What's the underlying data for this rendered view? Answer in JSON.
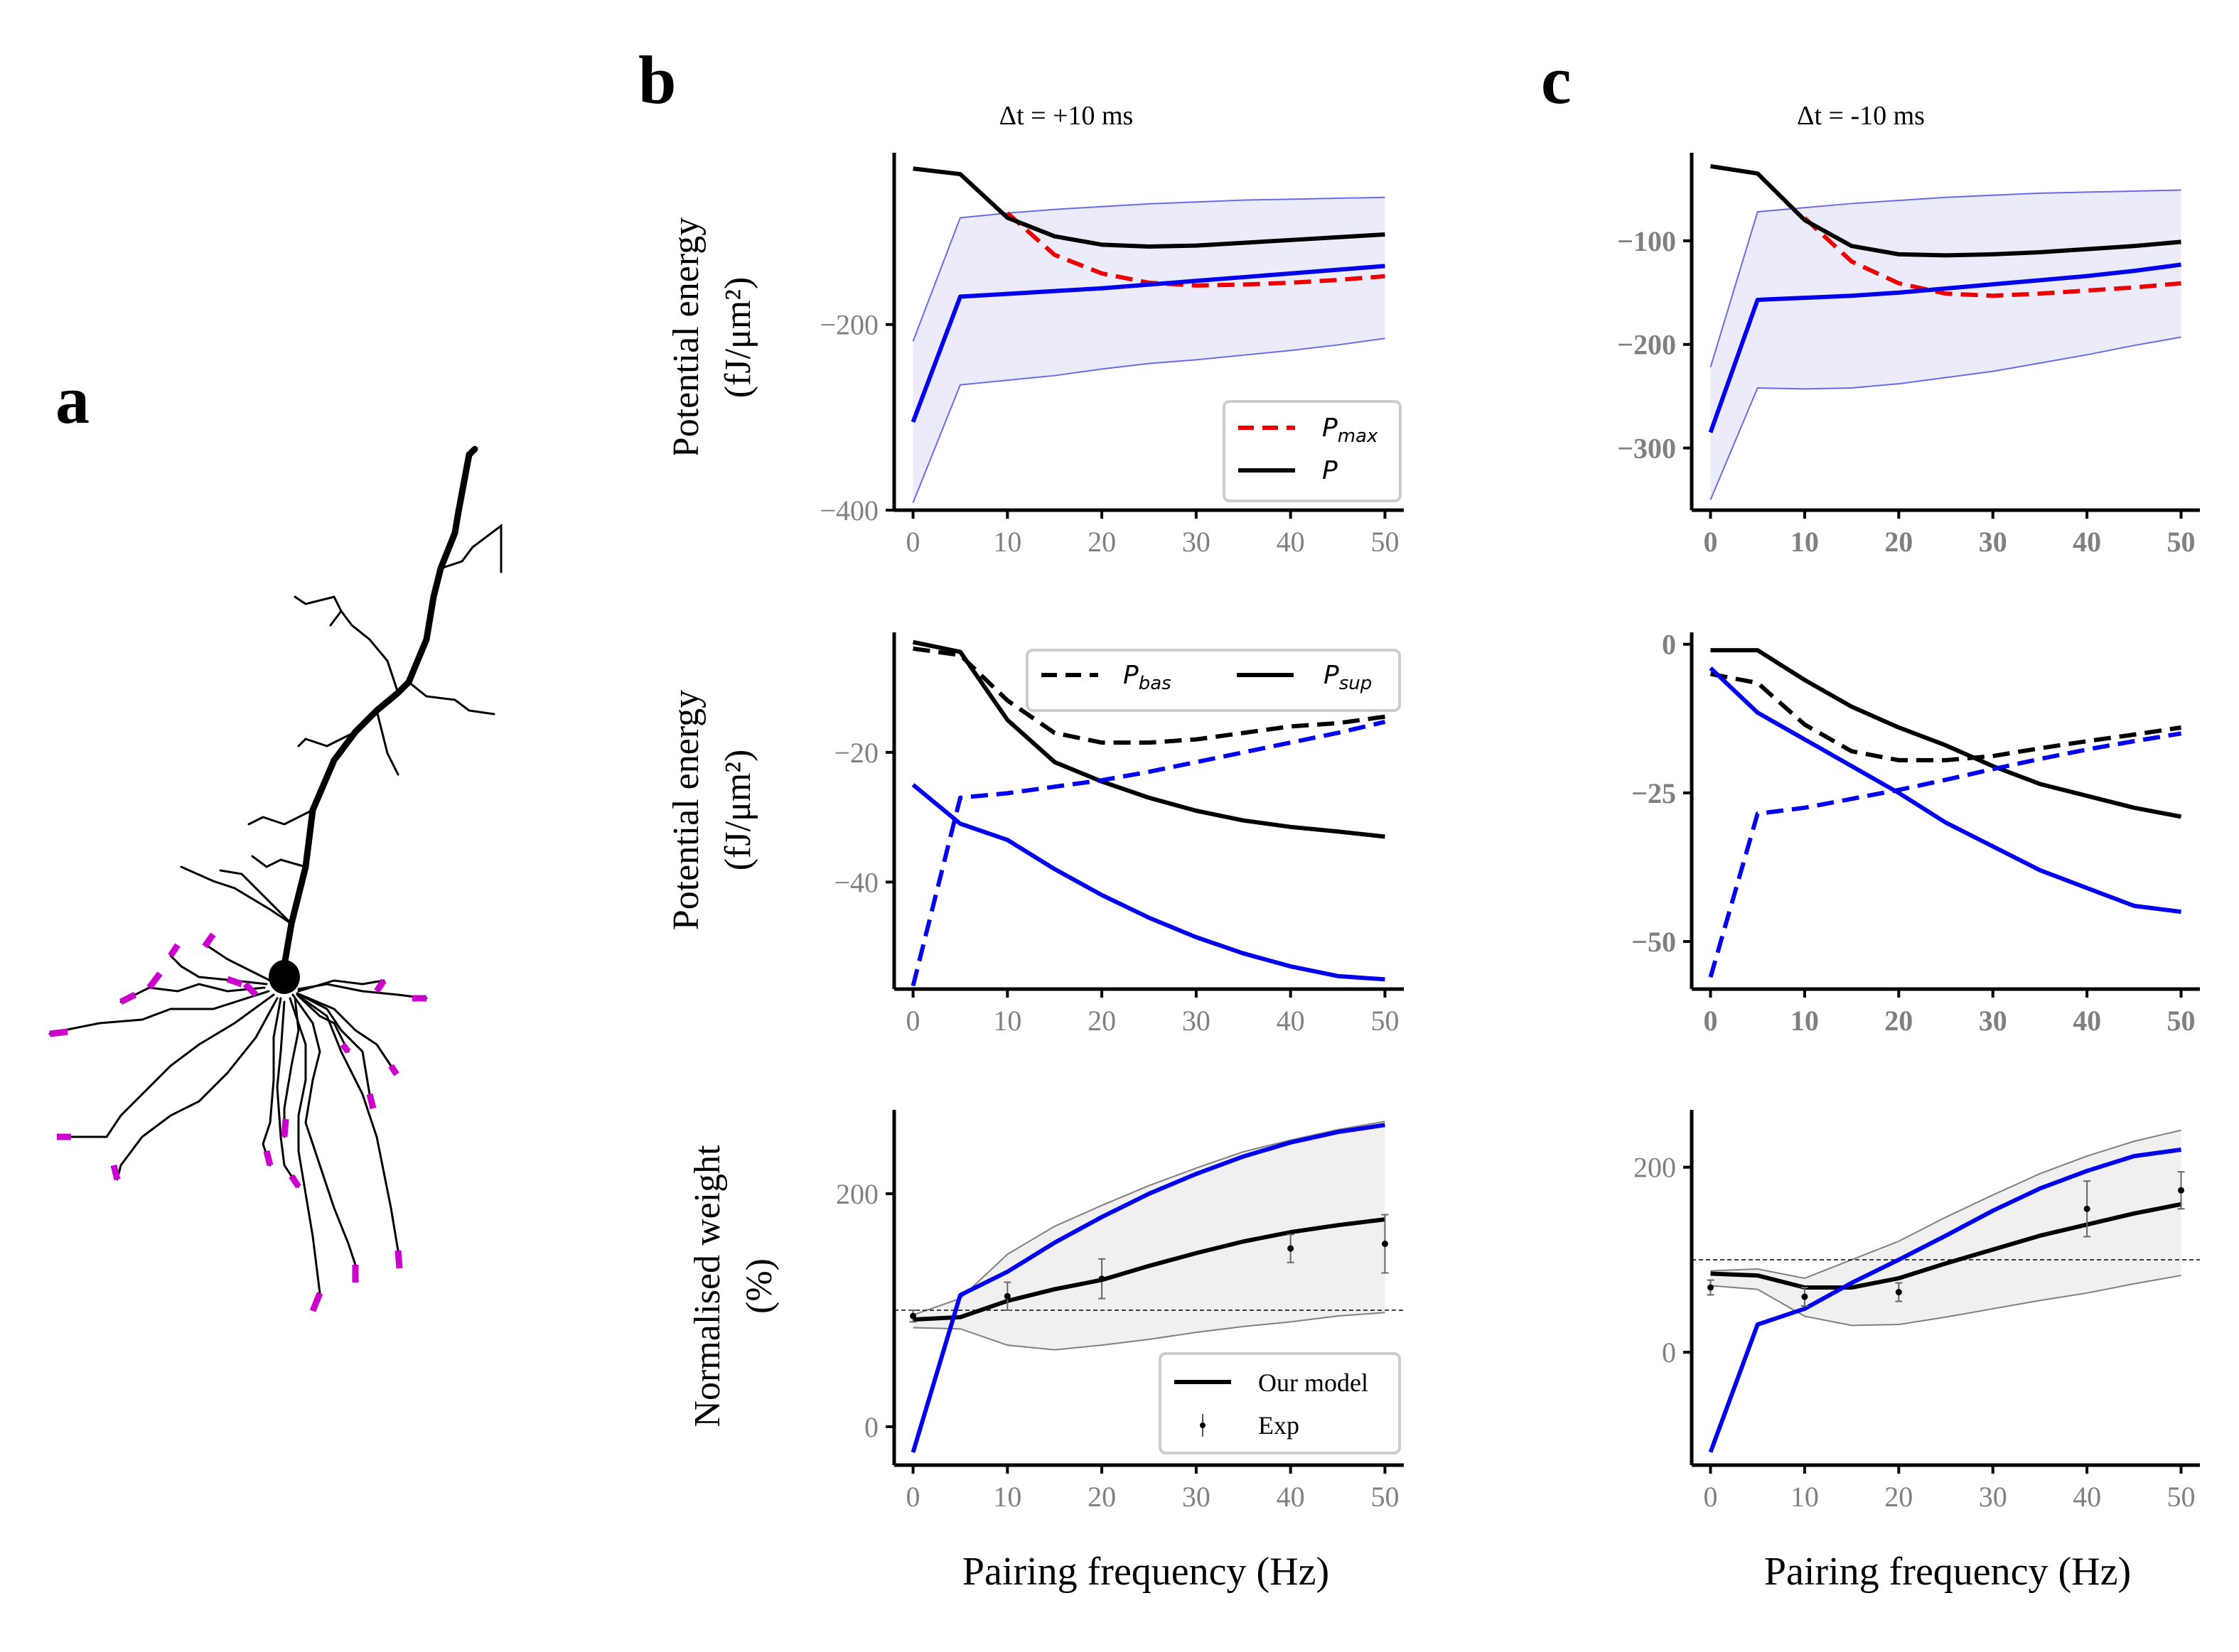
{
  "panel_labels": {
    "a": "a",
    "b": "b",
    "c": "c"
  },
  "titles": {
    "b": "Δt = +10 ms",
    "c": "Δt = -10 ms"
  },
  "ylabels": {
    "energy_line1": "Potential energy",
    "energy_line2": "(fJ/μm²)",
    "weight_line1": "Normalised weight",
    "weight_line2": "(%)"
  },
  "xlabel": "Pairing frequency (Hz)",
  "legends": {
    "pmax": "P_max",
    "p": "P",
    "pbas": "P_bas",
    "psup": "P_sup",
    "model": "Our model",
    "exp": "Exp"
  },
  "colors": {
    "blue": "#0000ee",
    "red": "#ee0000",
    "black": "#000000",
    "band_blue": "#ebebfa",
    "band_gray": "#f0f0f0",
    "tick_gray": "#808080",
    "synapse": "#cc00cc"
  },
  "chart_data": [
    {
      "id": "b1",
      "type": "line",
      "xlim": [
        -2,
        52
      ],
      "ylim": [
        -400,
        -15
      ],
      "xticks": [
        0,
        10,
        20,
        30,
        40,
        50
      ],
      "yticks": [
        -400,
        -200
      ],
      "x": [
        0,
        5,
        10,
        15,
        20,
        25,
        30,
        35,
        40,
        45,
        50
      ],
      "series": [
        {
          "name": "P_max",
          "color": "red",
          "dash": true,
          "values": [
            null,
            null,
            -80,
            -125,
            -145,
            -155,
            -158,
            -157,
            -155,
            -152,
            -148
          ]
        },
        {
          "name": "P",
          "color": "black",
          "values": [
            -32,
            -38,
            -85,
            -105,
            -114,
            -116,
            -115,
            -112,
            -109,
            -106,
            -103
          ]
        },
        {
          "color": "blue",
          "values": [
            -305,
            -170,
            -167,
            -164,
            -161,
            -157,
            -153,
            -149,
            -145,
            -141,
            -137
          ]
        }
      ],
      "band": {
        "color": "band_blue",
        "upper": [
          -218,
          -85,
          -80,
          -76,
          -73,
          -70,
          -68,
          -66,
          -65,
          -64,
          -63
        ],
        "lower": [
          -392,
          -265,
          -260,
          -255,
          -248,
          -242,
          -238,
          -233,
          -228,
          -222,
          -215
        ]
      },
      "legend": "lower-right"
    },
    {
      "id": "b2",
      "type": "line",
      "xlim": [
        -2,
        52
      ],
      "ylim": [
        -56.5,
        -1.5
      ],
      "xticks": [
        0,
        10,
        20,
        30,
        40,
        50
      ],
      "yticks": [
        -40,
        -20
      ],
      "x": [
        0,
        5,
        10,
        15,
        20,
        25,
        30,
        35,
        40,
        45,
        50
      ],
      "series": [
        {
          "name": "P_bas",
          "color": "black",
          "dash": true,
          "values": [
            -4,
            -5,
            -12,
            -17,
            -18.5,
            -18.5,
            -18,
            -17,
            -16,
            -15.5,
            -14.5
          ]
        },
        {
          "name": "P_sup",
          "color": "black",
          "values": [
            -3,
            -4.5,
            -15,
            -21.5,
            -24.5,
            -27,
            -29,
            -30.5,
            -31.5,
            -32.2,
            -33
          ]
        },
        {
          "color": "blue",
          "dash": true,
          "values": [
            -56,
            -27,
            -26.3,
            -25.3,
            -24.3,
            -23,
            -21.5,
            -20,
            -18.5,
            -17,
            -15.3
          ]
        },
        {
          "color": "blue",
          "values": [
            -25,
            -31,
            -33.5,
            -38,
            -42,
            -45.5,
            -48.5,
            -51,
            -53,
            -54.5,
            -55
          ]
        }
      ],
      "legend": "top-right"
    },
    {
      "id": "b3",
      "type": "line",
      "xlim": [
        -2,
        52
      ],
      "ylim": [
        -33,
        272
      ],
      "xticks": [
        0,
        10,
        20,
        30,
        40,
        50
      ],
      "yticks": [
        0,
        200
      ],
      "x": [
        0,
        5,
        10,
        15,
        20,
        25,
        30,
        35,
        40,
        45,
        50
      ],
      "series": [
        {
          "name": "Our model",
          "color": "black",
          "values": [
            92,
            94,
            108,
            118,
            126,
            138,
            149,
            159,
            167,
            173,
            178
          ]
        },
        {
          "color": "blue",
          "values": [
            -22,
            113,
            133,
            158,
            180,
            200,
            217,
            232,
            244,
            253,
            259
          ]
        },
        {
          "name": "Exp",
          "type": "errorbar",
          "x": [
            0,
            10,
            20,
            40,
            50
          ],
          "values": [
            95,
            112,
            127,
            153,
            157
          ],
          "err": [
            5,
            12,
            17,
            12,
            25
          ]
        }
      ],
      "band": {
        "color": "band_gray",
        "upper": [
          96,
          110,
          148,
          172,
          190,
          207,
          222,
          236,
          246,
          255,
          262
        ],
        "lower": [
          85,
          84,
          70,
          66,
          70,
          75,
          81,
          86,
          90,
          95,
          98
        ]
      },
      "refline": 100,
      "legend": "lower-right"
    },
    {
      "id": "c1",
      "type": "line",
      "xlim": [
        -2,
        52
      ],
      "ylim": [
        -360,
        -15
      ],
      "xticks": [
        0,
        10,
        20,
        30,
        40,
        50
      ],
      "yticks": [
        -300,
        -200,
        -100
      ],
      "x": [
        0,
        5,
        10,
        15,
        20,
        25,
        30,
        35,
        40,
        45,
        50
      ],
      "series": [
        {
          "color": "red",
          "dash": true,
          "values": [
            null,
            null,
            -78,
            -120,
            -141,
            -151,
            -153,
            -151,
            -148,
            -145,
            -141
          ]
        },
        {
          "color": "black",
          "values": [
            -28,
            -35,
            -80,
            -105,
            -113,
            -114,
            -113,
            -111,
            -108,
            -105,
            -101
          ]
        },
        {
          "color": "blue",
          "values": [
            -285,
            -157,
            -155,
            -153,
            -150,
            -146,
            -142,
            -138,
            -134,
            -129,
            -123
          ]
        }
      ],
      "band": {
        "color": "band_blue",
        "upper": [
          -222,
          -72,
          -68,
          -64,
          -61,
          -58,
          -56,
          -54,
          -53,
          -52,
          -51
        ],
        "lower": [
          -350,
          -242,
          -243,
          -242,
          -238,
          -232,
          -226,
          -218,
          -210,
          -201,
          -193
        ]
      }
    },
    {
      "id": "c2",
      "type": "line",
      "xlim": [
        -2,
        52
      ],
      "ylim": [
        -58,
        2
      ],
      "xticks": [
        0,
        10,
        20,
        30,
        40,
        50
      ],
      "yticks": [
        -50,
        -25,
        0
      ],
      "x": [
        0,
        5,
        10,
        15,
        20,
        25,
        30,
        35,
        40,
        45,
        50
      ],
      "series": [
        {
          "color": "black",
          "dash": true,
          "values": [
            -5,
            -6.5,
            -13.5,
            -18,
            -19.5,
            -19.5,
            -18.8,
            -17.5,
            -16.3,
            -15.2,
            -14
          ]
        },
        {
          "color": "black",
          "values": [
            -1,
            -1,
            -6,
            -10.5,
            -14,
            -17,
            -20.5,
            -23.5,
            -25.5,
            -27.5,
            -29
          ]
        },
        {
          "color": "blue",
          "dash": true,
          "values": [
            -56,
            -28.5,
            -27.5,
            -26,
            -24.5,
            -22.8,
            -21,
            -19.3,
            -17.7,
            -16.3,
            -15
          ]
        },
        {
          "color": "blue",
          "values": [
            -4,
            -11.5,
            -16,
            -20.5,
            -25,
            -30,
            -34,
            -38,
            -41,
            -44,
            -45
          ]
        }
      ]
    },
    {
      "id": "c3",
      "type": "line",
      "xlim": [
        -2,
        52
      ],
      "ylim": [
        -122,
        262
      ],
      "xticks": [
        0,
        10,
        20,
        30,
        40,
        50
      ],
      "yticks": [
        0,
        200
      ],
      "x": [
        0,
        5,
        10,
        15,
        20,
        25,
        30,
        35,
        40,
        45,
        50
      ],
      "series": [
        {
          "color": "black",
          "values": [
            85,
            83,
            70,
            70,
            80,
            96,
            111,
            126,
            138,
            150,
            160
          ]
        },
        {
          "color": "blue",
          "values": [
            -108,
            30,
            47,
            75,
            100,
            126,
            153,
            177,
            196,
            212,
            219
          ]
        },
        {
          "type": "errorbar",
          "x": [
            0,
            10,
            20,
            40,
            50
          ],
          "values": [
            70,
            60,
            65,
            155,
            175
          ],
          "err": [
            8,
            10,
            10,
            30,
            20
          ]
        }
      ],
      "band": {
        "color": "band_gray",
        "upper": [
          88,
          90,
          80,
          100,
          120,
          146,
          170,
          193,
          212,
          228,
          240
        ],
        "lower": [
          72,
          68,
          39,
          29,
          30,
          38,
          47,
          56,
          64,
          74,
          83
        ]
      },
      "refline": 100
    }
  ]
}
